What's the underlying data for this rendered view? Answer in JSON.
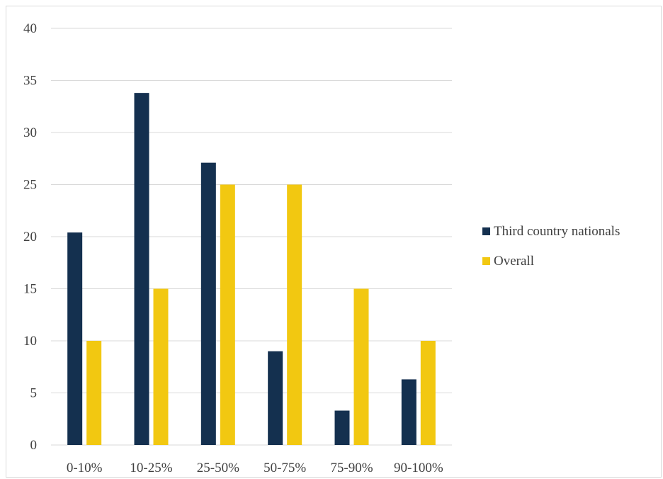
{
  "chart_data": {
    "type": "bar",
    "categories": [
      "0-10%",
      "10-25%",
      "25-50%",
      "50-75%",
      "75-90%",
      "90-100%"
    ],
    "series": [
      {
        "name": "Third country nationals",
        "color": "#14304f",
        "values": [
          20.4,
          33.8,
          27.1,
          9.0,
          3.3,
          6.3
        ]
      },
      {
        "name": "Overall",
        "color": "#f2c811",
        "values": [
          10,
          15,
          25,
          25,
          15,
          10
        ]
      }
    ],
    "y_ticks": [
      "0",
      "5",
      "10",
      "15",
      "20",
      "25",
      "30",
      "35",
      "40"
    ],
    "ylim": [
      0,
      40
    ],
    "grid": true,
    "legend_position": "right"
  }
}
